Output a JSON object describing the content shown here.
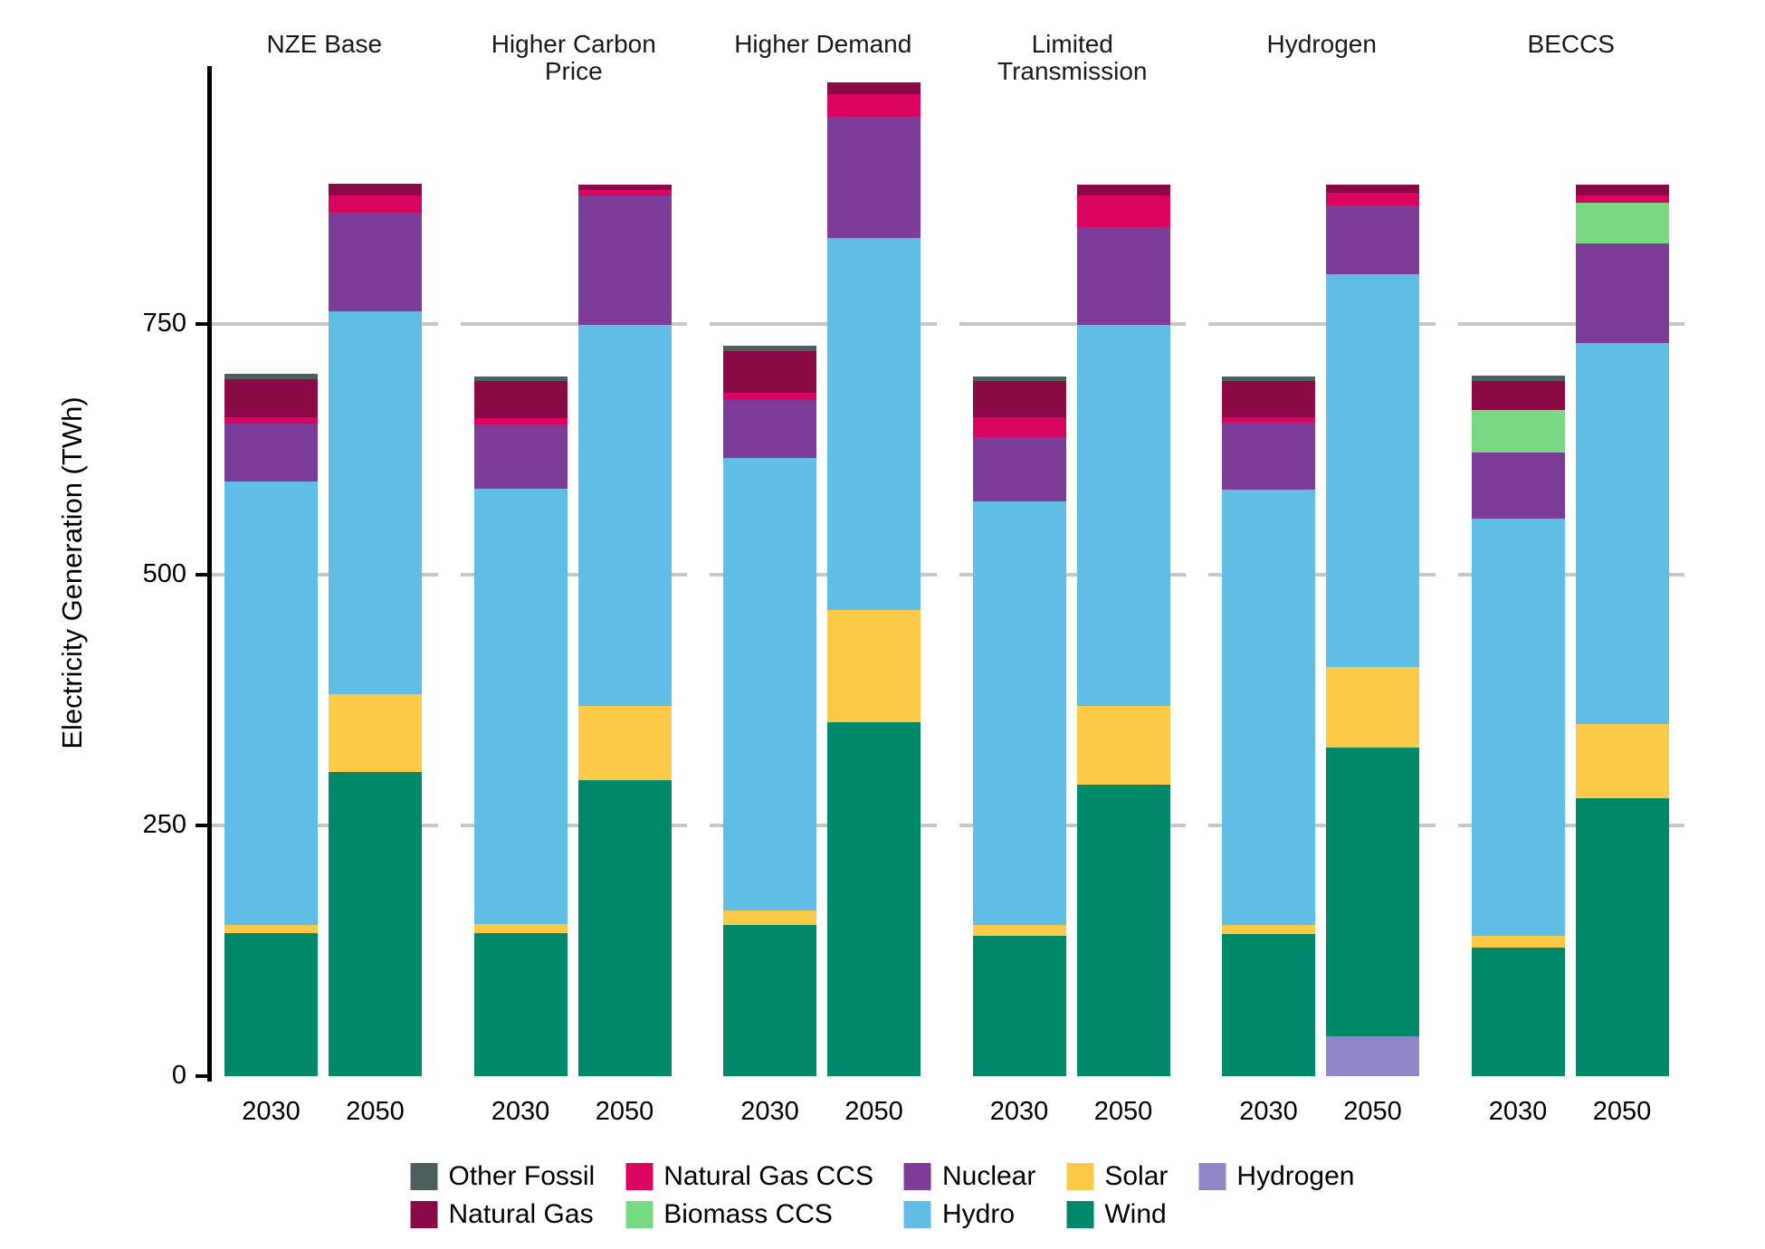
{
  "y_axis_title": "Electricity Generation (TWh)",
  "colors": {
    "Other Fossil": "#4d5e5e",
    "Natural Gas": "#8b0a45",
    "Natural Gas CCS": "#d9045f",
    "Biomass CCS": "#79d882",
    "Nuclear": "#7d3c98",
    "Hydro": "#5fbde6",
    "Solar": "#fdca47",
    "Wind": "#00886b",
    "Hydrogen": "#8f87c7"
  },
  "legend_order": [
    "Other Fossil",
    "Natural Gas",
    "Natural Gas CCS",
    "Biomass CCS",
    "Nuclear",
    "Hydro",
    "Solar",
    "Wind",
    "Hydrogen"
  ],
  "chart_data": {
    "type": "bar",
    "stacked": true,
    "title": "",
    "xlabel": "",
    "ylabel": "Electricity Generation (TWh)",
    "yticks": [
      0,
      250,
      500,
      750
    ],
    "ylim": [
      0,
      1005
    ],
    "grid": "horizontal",
    "legend_position": "bottom",
    "facets": [
      "NZE Base",
      "Higher Carbon Price",
      "Higher Demand",
      "Limited Transmission",
      "Hydrogen",
      "BECCS"
    ],
    "years": [
      "2030",
      "2050"
    ],
    "stack_order_bottom_to_top": [
      "Hydrogen",
      "Wind",
      "Solar",
      "Hydro",
      "Nuclear",
      "Biomass CCS",
      "Natural Gas CCS",
      "Natural Gas",
      "Other Fossil"
    ],
    "bars": [
      {
        "facet": "NZE Base",
        "year": "2030",
        "total": 700,
        "values": {
          "Hydrogen": 0,
          "Wind": 143,
          "Solar": 8,
          "Hydro": 442,
          "Nuclear": 58,
          "Biomass CCS": 0,
          "Natural Gas CCS": 6,
          "Natural Gas": 38,
          "Other Fossil": 5
        }
      },
      {
        "facet": "NZE Base",
        "year": "2050",
        "total": 890,
        "values": {
          "Hydrogen": 0,
          "Wind": 303,
          "Solar": 78,
          "Hydro": 382,
          "Nuclear": 98,
          "Biomass CCS": 0,
          "Natural Gas CCS": 17,
          "Natural Gas": 12,
          "Other Fossil": 0
        }
      },
      {
        "facet": "Higher Carbon Price",
        "year": "2030",
        "total": 698,
        "values": {
          "Hydrogen": 0,
          "Wind": 143,
          "Solar": 9,
          "Hydro": 434,
          "Nuclear": 64,
          "Biomass CCS": 0,
          "Natural Gas CCS": 6,
          "Natural Gas": 37,
          "Other Fossil": 5
        }
      },
      {
        "facet": "Higher Carbon Price",
        "year": "2050",
        "total": 889,
        "values": {
          "Hydrogen": 0,
          "Wind": 295,
          "Solar": 74,
          "Hydro": 380,
          "Nuclear": 129,
          "Biomass CCS": 0,
          "Natural Gas CCS": 6,
          "Natural Gas": 5,
          "Other Fossil": 0
        }
      },
      {
        "facet": "Higher Demand",
        "year": "2030",
        "total": 728,
        "values": {
          "Hydrogen": 0,
          "Wind": 151,
          "Solar": 14,
          "Hydro": 451,
          "Nuclear": 58,
          "Biomass CCS": 0,
          "Natural Gas CCS": 7,
          "Natural Gas": 42,
          "Other Fossil": 5
        }
      },
      {
        "facet": "Higher Demand",
        "year": "2050",
        "total": 991,
        "values": {
          "Hydrogen": 0,
          "Wind": 353,
          "Solar": 112,
          "Hydro": 371,
          "Nuclear": 121,
          "Biomass CCS": 0,
          "Natural Gas CCS": 22,
          "Natural Gas": 12,
          "Other Fossil": 0
        }
      },
      {
        "facet": "Limited Transmission",
        "year": "2030",
        "total": 698,
        "values": {
          "Hydrogen": 0,
          "Wind": 140,
          "Solar": 11,
          "Hydro": 422,
          "Nuclear": 64,
          "Biomass CCS": 0,
          "Natural Gas CCS": 20,
          "Natural Gas": 36,
          "Other Fossil": 5
        }
      },
      {
        "facet": "Limited Transmission",
        "year": "2050",
        "total": 889,
        "values": {
          "Hydrogen": 0,
          "Wind": 291,
          "Solar": 78,
          "Hydro": 380,
          "Nuclear": 98,
          "Biomass CCS": 0,
          "Natural Gas CCS": 31,
          "Natural Gas": 11,
          "Other Fossil": 0
        }
      },
      {
        "facet": "Hydrogen",
        "year": "2030",
        "total": 698,
        "values": {
          "Hydrogen": 0,
          "Wind": 142,
          "Solar": 9,
          "Hydro": 434,
          "Nuclear": 67,
          "Biomass CCS": 0,
          "Natural Gas CCS": 5,
          "Natural Gas": 36,
          "Other Fossil": 5
        }
      },
      {
        "facet": "Hydrogen",
        "year": "2050",
        "total": 889,
        "values": {
          "Hydrogen": 40,
          "Wind": 288,
          "Solar": 80,
          "Hydro": 392,
          "Nuclear": 68,
          "Biomass CCS": 0,
          "Natural Gas CCS": 13,
          "Natural Gas": 8,
          "Other Fossil": 0
        }
      },
      {
        "facet": "BECCS",
        "year": "2030",
        "total": 699,
        "values": {
          "Hydrogen": 0,
          "Wind": 128,
          "Solar": 12,
          "Hydro": 416,
          "Nuclear": 66,
          "Biomass CCS": 42,
          "Natural Gas CCS": 0,
          "Natural Gas": 29,
          "Other Fossil": 6
        }
      },
      {
        "facet": "BECCS",
        "year": "2050",
        "total": 889,
        "values": {
          "Hydrogen": 0,
          "Wind": 277,
          "Solar": 74,
          "Hydro": 380,
          "Nuclear": 99,
          "Biomass CCS": 41,
          "Natural Gas CCS": 7,
          "Natural Gas": 11,
          "Other Fossil": 0
        }
      }
    ]
  }
}
